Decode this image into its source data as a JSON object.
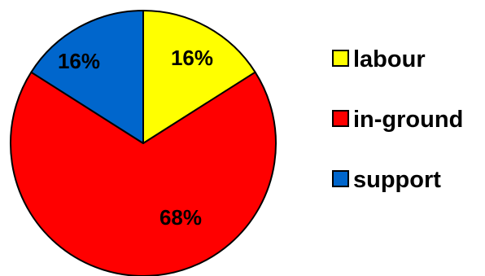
{
  "chart_data": {
    "type": "pie",
    "categories": [
      "labour",
      "in-ground",
      "support"
    ],
    "values": [
      16,
      68,
      16
    ],
    "value_labels": [
      "16%",
      "68%",
      "16%"
    ],
    "colors": [
      "#ffff00",
      "#ff0000",
      "#0066cc"
    ],
    "start_angle_deg": 0,
    "direction": "clockwise",
    "legend": {
      "placement": "right",
      "entries": [
        "labour",
        "in-ground",
        "support"
      ]
    }
  }
}
